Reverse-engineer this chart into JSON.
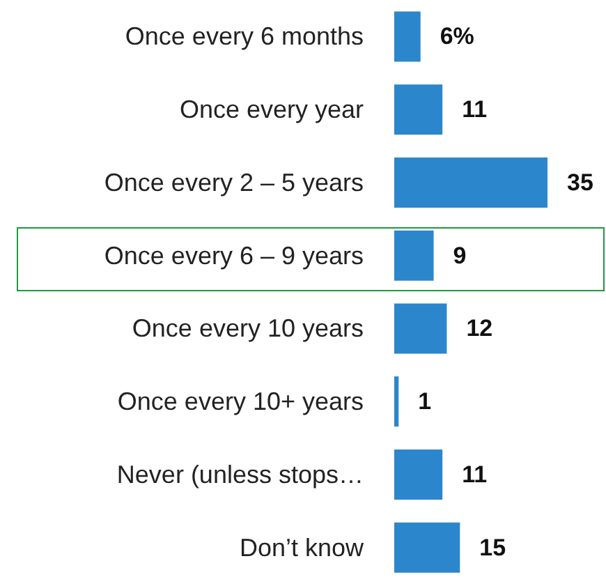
{
  "chart_data": {
    "type": "bar",
    "orientation": "horizontal",
    "categories": [
      "Once every 6 months",
      "Once every year",
      "Once every 2 – 5 years",
      "Once every 6 – 9 years",
      "Once every 10 years",
      "Once every 10+ years",
      "Never (unless stops…",
      "Don’t know"
    ],
    "values": [
      6,
      11,
      35,
      9,
      12,
      1,
      11,
      15
    ],
    "value_labels": [
      "6%",
      "11",
      "35",
      "9",
      "12",
      "1",
      "11",
      "15"
    ],
    "color": "#2b86cb"
  }
}
